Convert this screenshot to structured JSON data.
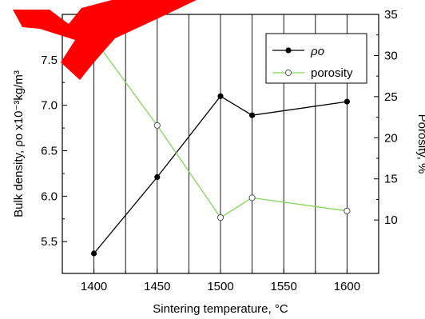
{
  "chart_data": {
    "type": "line",
    "xlabel": "Sintering temperature, °C",
    "ylabel_left": "Bulk density, ρo x10⁻³kg/m³",
    "ylabel_right": "Porosity, %",
    "xlim": [
      1375,
      1625
    ],
    "xticks": [
      1400,
      1450,
      1500,
      1550,
      1600
    ],
    "ylim_left": [
      5.15,
      8.0
    ],
    "yticks_left": [
      "5.5",
      "6.0",
      "6.5",
      "7.0",
      "7.5"
    ],
    "ylim_right": [
      3.5,
      35
    ],
    "yticks_right": [
      "10",
      "15",
      "20",
      "25",
      "30",
      "35"
    ],
    "grid": "vertical lines",
    "legend_position": "top-right",
    "series": [
      {
        "name": "ρo",
        "axis": "left",
        "color": "#000000",
        "marker": "filled-circle",
        "x": [
          1400,
          1450,
          1500,
          1525,
          1600
        ],
        "y": [
          5.37,
          6.21,
          7.1,
          6.89,
          7.04
        ]
      },
      {
        "name": "porosity",
        "axis": "right",
        "color": "#86d35a",
        "marker": "open-circle",
        "x": [
          1400,
          1450,
          1500,
          1525,
          1600
        ],
        "y": [
          32.0,
          21.5,
          10.3,
          12.7,
          11.1
        ]
      }
    ],
    "annotation_color": "#ff0000"
  }
}
